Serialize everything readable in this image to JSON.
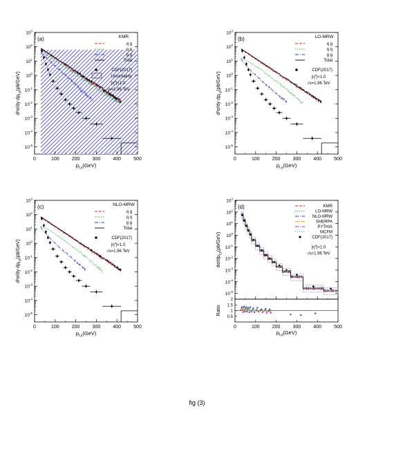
{
  "caption": "fig (3)",
  "colors": {
    "qg": "#e8202a",
    "qq": "#3ab84a",
    "gg": "#2a2ad8",
    "total": "#000000",
    "band": "#1c1cc8",
    "sherpa": "#e8a020",
    "pythia": "#c020c0",
    "mcfm": "#30c8c8"
  },
  "chart_data": [
    {
      "type": "line",
      "panel": "(a)",
      "scale": "log-y",
      "xlabel": "p",
      "xlabel_sub": "t,γ",
      "xlabel_unit": "(GeV)",
      "ylabel": "d²σ/dy dp",
      "ylabel_sub": "t,γ",
      "ylabel_unit": "(pb/GeV)",
      "xlim": [
        0,
        500
      ],
      "ylim_exp": [
        -5.5,
        3
      ],
      "xticks": [
        0,
        100,
        200,
        300,
        400,
        500
      ],
      "yticks_exp": [
        -5,
        -4,
        -3,
        -2,
        -1,
        0,
        1,
        2,
        3
      ],
      "legend_title": "KMR",
      "legend": [
        {
          "label": "q g",
          "style": "qg"
        },
        {
          "label": "q q",
          "style": "qq"
        },
        {
          "label": "g g",
          "style": "gg"
        },
        {
          "label": "Total",
          "style": "total"
        }
      ],
      "legend2": [
        {
          "label": "CDF(2017)",
          "style": "point"
        },
        {
          "label": "Uncertainty",
          "style": "hatch"
        }
      ],
      "notes": [
        "|η",
        "γ",
        "|<1.0",
        "√s=1.96 TeV"
      ],
      "uncertainty_band": {
        "xrange": [
          30,
          500
        ],
        "ymax_exp": 1.8
      },
      "series": [
        {
          "name": "q g",
          "style": "qg",
          "logA": 1.85,
          "xs": 30,
          "xe": 420,
          "lam": 105,
          "k": 1.0,
          "noise": 0.12
        },
        {
          "name": "q q",
          "style": "qq",
          "logA": 1.7,
          "xs": 30,
          "xe": 420,
          "lam": 105,
          "k": 1.0,
          "noise": 0.12
        },
        {
          "name": "g g",
          "style": "gg",
          "logA": 1.6,
          "xs": 30,
          "xe": 285,
          "lam": 75,
          "k": 1.0,
          "noise": 0.12
        },
        {
          "name": "Total",
          "style": "total",
          "logA": 1.9,
          "xs": 30,
          "xe": 420,
          "lam": 105,
          "k": 1.0,
          "noise": 0.12
        }
      ],
      "cdf": {
        "pt": [
          35,
          45,
          55,
          65,
          75,
          90,
          110,
          130,
          150,
          170,
          190,
          215,
          250,
          300,
          375
        ],
        "xerr": [
          5,
          5,
          5,
          5,
          5,
          10,
          10,
          10,
          10,
          10,
          10,
          15,
          20,
          30,
          45
        ],
        "log": [
          1.72,
          1.25,
          0.8,
          0.4,
          0.05,
          -0.4,
          -0.9,
          -1.3,
          -1.7,
          -2.0,
          -2.3,
          -2.6,
          -3.0,
          -3.4,
          -4.4
        ]
      },
      "total_tail": {
        "x0": 420,
        "x1": 500,
        "logy": -4.72
      }
    },
    {
      "type": "line",
      "panel": "(b)",
      "scale": "log-y",
      "xlabel": "p",
      "xlabel_sub": "t,γ",
      "xlabel_unit": "(GeV)",
      "ylabel": "d²σ/dy dp",
      "ylabel_sub": "t,γ",
      "ylabel_unit": "(pb/GeV)",
      "xlim": [
        0,
        500
      ],
      "ylim_exp": [
        -5.5,
        3
      ],
      "xticks": [
        0,
        100,
        200,
        300,
        400,
        500
      ],
      "yticks_exp": [
        -5,
        -4,
        -3,
        -2,
        -1,
        0,
        1,
        2,
        3
      ],
      "legend_title": "LO-MRW",
      "legend": [
        {
          "label": "q g",
          "style": "qg"
        },
        {
          "label": "q q",
          "style": "qq"
        },
        {
          "label": "g g",
          "style": "gg"
        },
        {
          "label": "Total",
          "style": "total"
        }
      ],
      "legend2": [
        {
          "label": "CDF(2017)",
          "style": "point"
        }
      ],
      "notes": [
        "|η",
        "γ",
        "|<1.0",
        "√s=1.96 TeV"
      ],
      "series": [
        {
          "name": "q g",
          "style": "qg",
          "logA": 1.8,
          "xs": 30,
          "xe": 420,
          "lam": 105,
          "k": 1.0,
          "noise": 0.08
        },
        {
          "name": "q q",
          "style": "qq",
          "logA": 1.2,
          "xs": 30,
          "xe": 330,
          "lam": 115,
          "k": 1.2,
          "noise": 0.08
        },
        {
          "name": "g g",
          "style": "gg",
          "logA": 1.15,
          "xs": 30,
          "xe": 250,
          "lam": 60,
          "k": 0.85,
          "noise": 0.08
        },
        {
          "name": "Total",
          "style": "total",
          "logA": 1.85,
          "xs": 30,
          "xe": 420,
          "lam": 105,
          "k": 1.0,
          "noise": 0.06
        }
      ],
      "cdf": {
        "pt": [
          35,
          45,
          55,
          65,
          75,
          90,
          110,
          130,
          150,
          170,
          190,
          215,
          250,
          300,
          375
        ],
        "xerr": [
          5,
          5,
          5,
          5,
          5,
          10,
          10,
          10,
          10,
          10,
          10,
          15,
          20,
          30,
          45
        ],
        "log": [
          1.72,
          1.25,
          0.8,
          0.4,
          0.05,
          -0.4,
          -0.9,
          -1.3,
          -1.7,
          -2.0,
          -2.3,
          -2.6,
          -3.0,
          -3.4,
          -4.4
        ]
      },
      "total_tail": {
        "x0": 420,
        "x1": 500,
        "logy": -4.72
      }
    },
    {
      "type": "line",
      "panel": "(c)",
      "scale": "log-y",
      "xlabel": "p",
      "xlabel_sub": "t,γ",
      "xlabel_unit": "(GeV)",
      "ylabel": "d²σ/dy dp",
      "ylabel_sub": "t,γ",
      "ylabel_unit": "(pb/GeV)",
      "xlim": [
        0,
        500
      ],
      "ylim_exp": [
        -5.5,
        3
      ],
      "xticks": [
        0,
        100,
        200,
        300,
        400,
        500
      ],
      "yticks_exp": [
        -5,
        -4,
        -3,
        -2,
        -1,
        0,
        1,
        2,
        3
      ],
      "legend_title": "NLO-MRW",
      "legend": [
        {
          "label": "q g",
          "style": "qg"
        },
        {
          "label": "q q",
          "style": "qq"
        },
        {
          "label": "g g",
          "style": "gg"
        },
        {
          "label": "Total",
          "style": "total"
        }
      ],
      "legend2": [
        {
          "label": "CDF(2017)",
          "style": "point"
        }
      ],
      "notes": [
        "|η",
        "γ",
        "|<1.0",
        "√s=1.96 TeV"
      ],
      "series": [
        {
          "name": "q g",
          "style": "qg",
          "logA": 1.8,
          "xs": 30,
          "xe": 420,
          "lam": 105,
          "k": 1.0,
          "noise": 0.08
        },
        {
          "name": "q q",
          "style": "qq",
          "logA": 1.2,
          "xs": 30,
          "xe": 330,
          "lam": 115,
          "k": 1.2,
          "noise": 0.08
        },
        {
          "name": "g g",
          "style": "gg",
          "logA": 1.15,
          "xs": 30,
          "xe": 250,
          "lam": 60,
          "k": 0.85,
          "noise": 0.08
        },
        {
          "name": "Total",
          "style": "total",
          "logA": 1.85,
          "xs": 30,
          "xe": 420,
          "lam": 105,
          "k": 1.0,
          "noise": 0.06
        }
      ],
      "cdf": {
        "pt": [
          35,
          45,
          55,
          65,
          75,
          90,
          110,
          130,
          150,
          170,
          190,
          215,
          250,
          300,
          375
        ],
        "xerr": [
          5,
          5,
          5,
          5,
          5,
          10,
          10,
          10,
          10,
          10,
          10,
          15,
          20,
          30,
          45
        ],
        "log": [
          1.72,
          1.25,
          0.8,
          0.4,
          0.05,
          -0.4,
          -0.9,
          -1.3,
          -1.7,
          -2.0,
          -2.3,
          -2.6,
          -3.0,
          -3.4,
          -4.4
        ]
      },
      "total_tail": {
        "x0": 420,
        "x1": 500,
        "logy": -4.72
      }
    },
    {
      "type": "step",
      "panel": "(d)",
      "scale": "log-y",
      "xlabel": "p",
      "xlabel_sub": "t,γ",
      "xlabel_unit": "(GeV)",
      "ylabel": "dσ/dp",
      "ylabel_sub": "t,γ",
      "ylabel_unit": "(pb/GeV)",
      "ratio_label": "Ratio",
      "xlim": [
        0,
        500
      ],
      "ylim_exp": [
        -5.5,
        3
      ],
      "xticks": [
        0,
        100,
        200,
        300,
        400,
        500
      ],
      "yticks_exp": [
        -5,
        -4,
        -3,
        -2,
        -1,
        0,
        1,
        2,
        3
      ],
      "ratio_ylim": [
        0,
        2
      ],
      "ratio_yticks": [
        "0.5",
        "1",
        "1.5",
        "2"
      ],
      "ratio_ytick_values": [
        0.5,
        1,
        1.5,
        2
      ],
      "legend": [
        {
          "label": "KMR",
          "style": "qg"
        },
        {
          "label": "LO-MRW",
          "style": "qq"
        },
        {
          "label": "NLO-MRW",
          "style": "gg"
        },
        {
          "label": "SHERPA",
          "style": "sherpa"
        },
        {
          "label": "PYTHIA",
          "style": "pythia"
        },
        {
          "label": "MCFM",
          "style": "mcfm"
        },
        {
          "label": "CDF(2017)",
          "style": "point"
        }
      ],
      "notes": [
        "|η",
        "γ",
        "|<1.0",
        "√s=1.96 TeV"
      ],
      "bins": [
        30,
        40,
        50,
        60,
        70,
        80,
        100,
        120,
        140,
        160,
        180,
        200,
        230,
        270,
        330,
        430,
        500
      ],
      "bin_log": [
        1.75,
        1.25,
        0.8,
        0.4,
        0.05,
        -0.45,
        -0.95,
        -1.35,
        -1.75,
        -2.05,
        -2.35,
        -2.75,
        -3.15,
        -3.6,
        -4.6,
        -4.8
      ],
      "band_dlog": 0.3,
      "cdf_log": [
        1.72,
        1.25,
        0.8,
        0.4,
        0.05,
        -0.4,
        -0.9,
        -1.3,
        -1.7,
        -2.0,
        -2.3,
        -2.6,
        -3.0,
        -3.4,
        -4.4,
        -4.6
      ],
      "ratios": [
        {
          "name": "KMR",
          "style": "qg",
          "values": [
            1.05,
            1.1,
            1.15,
            1.1,
            1.05,
            1.0,
            1.0,
            1.0,
            1.0,
            0.95
          ]
        },
        {
          "name": "LO-MRW",
          "style": "qq",
          "values": [
            1.2,
            1.25,
            1.2,
            1.2,
            1.15,
            1.1,
            1.1,
            1.1,
            1.05,
            1.05
          ]
        },
        {
          "name": "NLO-MRW",
          "style": "gg",
          "values": [
            1.3,
            1.35,
            1.3,
            1.25,
            1.3,
            1.2,
            1.25,
            1.1,
            1.15,
            1.1
          ]
        },
        {
          "name": "SHERPA",
          "style": "sherpa",
          "values": [
            1.0,
            1.05,
            1.0,
            1.05,
            1.0,
            1.0,
            0.95,
            1.0,
            0.95,
            0.9
          ]
        },
        {
          "name": "PYTHIA",
          "style": "pythia",
          "values": [
            0.85,
            0.9,
            0.9,
            0.85,
            0.9,
            0.85,
            0.9,
            0.85,
            0.8,
            0.8
          ]
        },
        {
          "name": "MCFM",
          "style": "mcfm",
          "values": [
            0.95,
            1.0,
            1.05,
            1.0,
            0.95,
            1.0,
            1.0,
            0.95,
            0.95,
            1.0
          ]
        }
      ],
      "ratio_points": [
        {
          "x": 270,
          "y": 0.65
        },
        {
          "x": 320,
          "y": 0.6
        },
        {
          "x": 390,
          "y": 0.75
        }
      ]
    }
  ]
}
